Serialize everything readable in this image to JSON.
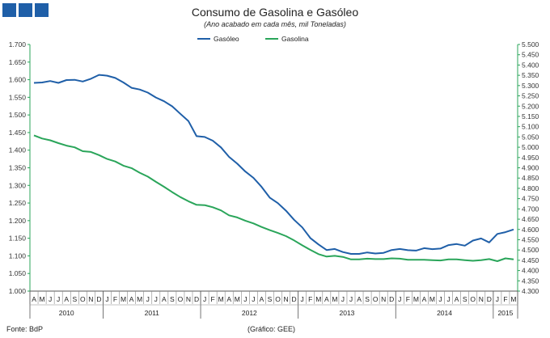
{
  "header": {
    "title": "Consumo de Gasolina e Gasóleo",
    "subtitle": "(Ano acabado em cada mês, mil Toneladas)"
  },
  "footer": {
    "source": "Fonte: BdP",
    "credit": "(Gráfico: GEE)"
  },
  "colors": {
    "gasoleo": "#1f5fa8",
    "gasolina": "#2aa55a",
    "axis": "#2aa55a",
    "logo": "#1f5fa8"
  },
  "chart_data": {
    "type": "line",
    "legend_position": "top",
    "grid": false,
    "months": [
      "A",
      "M",
      "J",
      "J",
      "A",
      "S",
      "O",
      "N",
      "D",
      "J",
      "F",
      "M",
      "A",
      "M",
      "J",
      "J",
      "A",
      "S",
      "O",
      "N",
      "D",
      "J",
      "F",
      "M",
      "A",
      "M",
      "J",
      "J",
      "A",
      "S",
      "O",
      "N",
      "D",
      "J",
      "F",
      "M",
      "A",
      "M",
      "J",
      "J",
      "A",
      "S",
      "O",
      "N",
      "D",
      "J",
      "F",
      "M",
      "A",
      "M",
      "J",
      "J",
      "A",
      "S",
      "O",
      "N",
      "D",
      "J",
      "F",
      "M"
    ],
    "years": [
      {
        "label": "2010",
        "start": 0,
        "count": 9
      },
      {
        "label": "2011",
        "start": 9,
        "count": 12
      },
      {
        "label": "2012",
        "start": 21,
        "count": 12
      },
      {
        "label": "2013",
        "start": 33,
        "count": 12
      },
      {
        "label": "2014",
        "start": 45,
        "count": 12
      },
      {
        "label": "2015",
        "start": 57,
        "count": 3
      }
    ],
    "y_left": {
      "min": 1000,
      "max": 1700,
      "ticks": [
        "1.000",
        "1.050",
        "1.100",
        "1.150",
        "1.200",
        "1.250",
        "1.300",
        "1.350",
        "1.400",
        "1.450",
        "1.500",
        "1.550",
        "1.600",
        "1.650",
        "1.700"
      ]
    },
    "y_right": {
      "min": 4300,
      "max": 5500,
      "ticks": [
        "4.300",
        "4.350",
        "4.400",
        "4.450",
        "4.500",
        "4.550",
        "4.600",
        "4.650",
        "4.700",
        "4.750",
        "4.800",
        "4.850",
        "4.900",
        "4.950",
        "5.000",
        "5.050",
        "5.100",
        "5.150",
        "5.200",
        "5.250",
        "5.300",
        "5.350",
        "5.400",
        "5.450",
        "5.500"
      ]
    },
    "series": [
      {
        "name": "Gasóleo",
        "axis": "right",
        "color": "#1f5fa8",
        "values": [
          5313,
          5315,
          5322,
          5313,
          5327,
          5328,
          5320,
          5333,
          5352,
          5348,
          5337,
          5315,
          5289,
          5281,
          5266,
          5242,
          5224,
          5199,
          5163,
          5127,
          5054,
          5050,
          5032,
          4999,
          4953,
          4920,
          4882,
          4851,
          4807,
          4755,
          4728,
          4691,
          4647,
          4610,
          4558,
          4527,
          4500,
          4505,
          4490,
          4481,
          4481,
          4488,
          4483,
          4486,
          4500,
          4505,
          4499,
          4497,
          4509,
          4504,
          4507,
          4524,
          4529,
          4521,
          4546,
          4556,
          4537,
          4578,
          4587,
          4600
        ]
      },
      {
        "name": "Gasolina",
        "axis": "left",
        "color": "#2aa55a",
        "values": [
          1442,
          1433,
          1428,
          1420,
          1413,
          1408,
          1397,
          1395,
          1386,
          1375,
          1368,
          1356,
          1349,
          1336,
          1325,
          1310,
          1296,
          1281,
          1267,
          1255,
          1245,
          1244,
          1238,
          1229,
          1215,
          1209,
          1200,
          1192,
          1182,
          1173,
          1165,
          1156,
          1144,
          1130,
          1117,
          1105,
          1098,
          1100,
          1097,
          1090,
          1090,
          1092,
          1091,
          1091,
          1093,
          1092,
          1089,
          1089,
          1089,
          1088,
          1087,
          1090,
          1090,
          1088,
          1086,
          1088,
          1091,
          1085,
          1093,
          1090
        ]
      }
    ]
  }
}
